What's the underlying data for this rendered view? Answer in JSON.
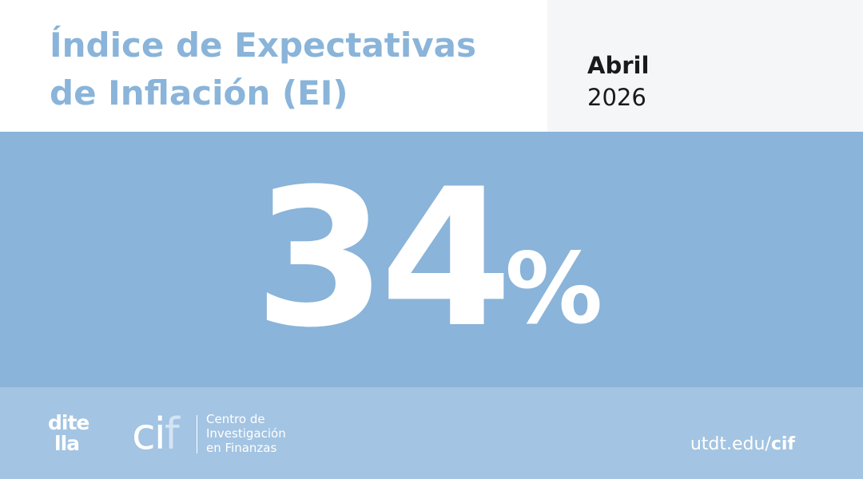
{
  "header": {
    "title_lines": [
      "Índice de Expectativas",
      "de Inflación (EI)"
    ],
    "month": "Abril",
    "year": "2026"
  },
  "hero": {
    "value": 34,
    "unit": "%"
  },
  "footer": {
    "logo_ditella": [
      "dite",
      "lla"
    ],
    "logo_cif": {
      "main": "ci",
      "accent": "f"
    },
    "cif_name_lines": [
      "Centro de",
      "Investigación",
      "en Finanzas"
    ],
    "url": {
      "domain": "utdt.edu/",
      "path": "cif"
    }
  }
}
